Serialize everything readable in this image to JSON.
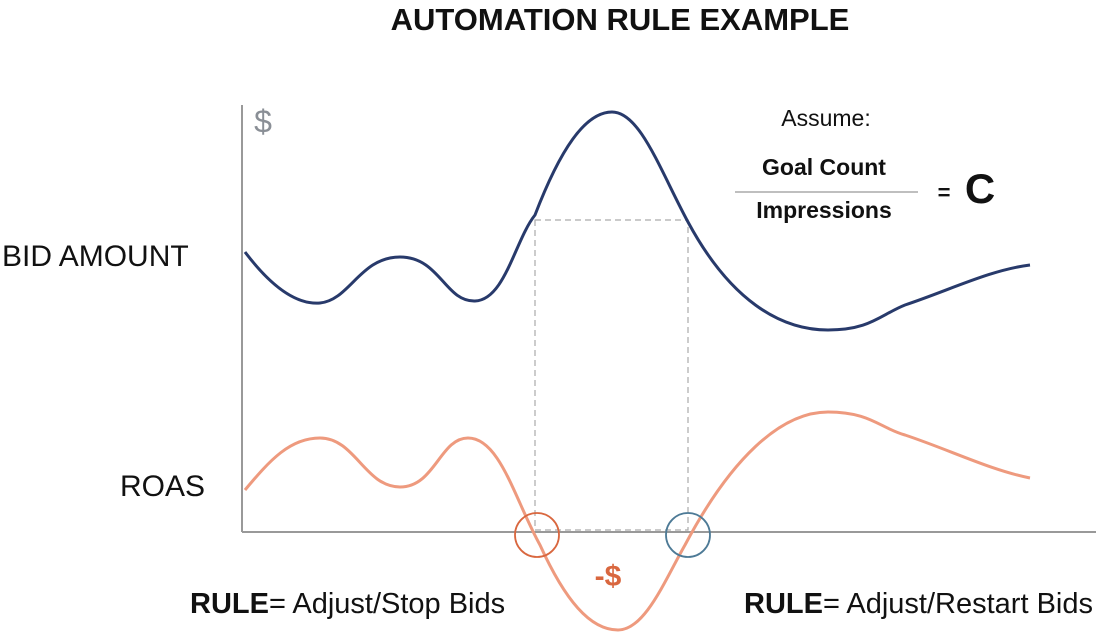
{
  "header": {
    "title": "AUTOMATION RULE EXAMPLE"
  },
  "axis": {
    "y_symbol": "$"
  },
  "assumption": {
    "label": "Assume:",
    "numerator": "Goal Count",
    "denominator": "Impressions",
    "equals": "=",
    "result": "C"
  },
  "curves": {
    "top_label": "BID AMOUNT",
    "bottom_label": "ROAS",
    "loss_label": "-$"
  },
  "rules": [
    {
      "keyword": "RULE",
      "text": "= Adjust/Stop Bids"
    },
    {
      "keyword": "RULE",
      "text": "= Adjust/Restart Bids"
    }
  ]
}
